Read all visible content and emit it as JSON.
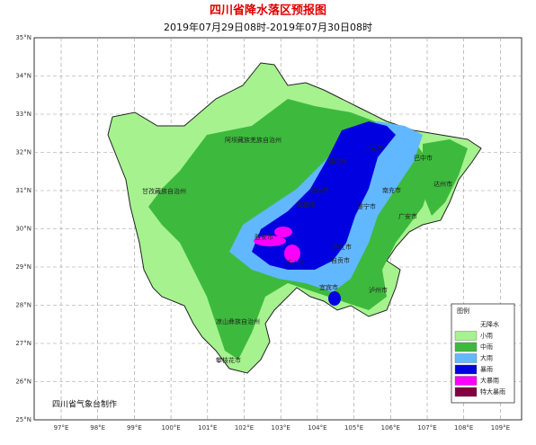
{
  "title": "四川省降水落区预报图",
  "subtitle": "2019年07月29日08时-2019年07月30日08时",
  "lat_ticks": [
    "35°N",
    "34°N",
    "33°N",
    "32°N",
    "31°N",
    "30°N",
    "29°N",
    "28°N",
    "27°N",
    "26°N",
    "25°N"
  ],
  "lon_ticks": [
    "97°E",
    "98°E",
    "99°E",
    "100°E",
    "101°E",
    "102°E",
    "103°E",
    "104°E",
    "105°E",
    "106°E",
    "107°E",
    "108°E",
    "109°E"
  ],
  "cities": [
    "阿坝藏族羌族自治州",
    "甘孜藏族自治州",
    "凉山彝族自治州",
    "攀枝花市",
    "广元市",
    "巴中市",
    "达州市",
    "南充市",
    "广安市",
    "绵阳市",
    "德阳市",
    "成都市",
    "遂宁市",
    "雅安市",
    "内江市",
    "乐山市",
    "自贡市",
    "宜宾市",
    "泸州市"
  ],
  "legend": {
    "title": "图例",
    "items": [
      {
        "label": "无降水",
        "color": "#ffffff"
      },
      {
        "label": "小雨",
        "color": "#a6f28f"
      },
      {
        "label": "中雨",
        "color": "#3dba3d"
      },
      {
        "label": "大雨",
        "color": "#61b8ff"
      },
      {
        "label": "暴雨",
        "color": "#0000e1"
      },
      {
        "label": "大暴雨",
        "color": "#fa00fa"
      },
      {
        "label": "特大暴雨",
        "color": "#800040"
      }
    ]
  },
  "credit": "四川省气象台制作"
}
